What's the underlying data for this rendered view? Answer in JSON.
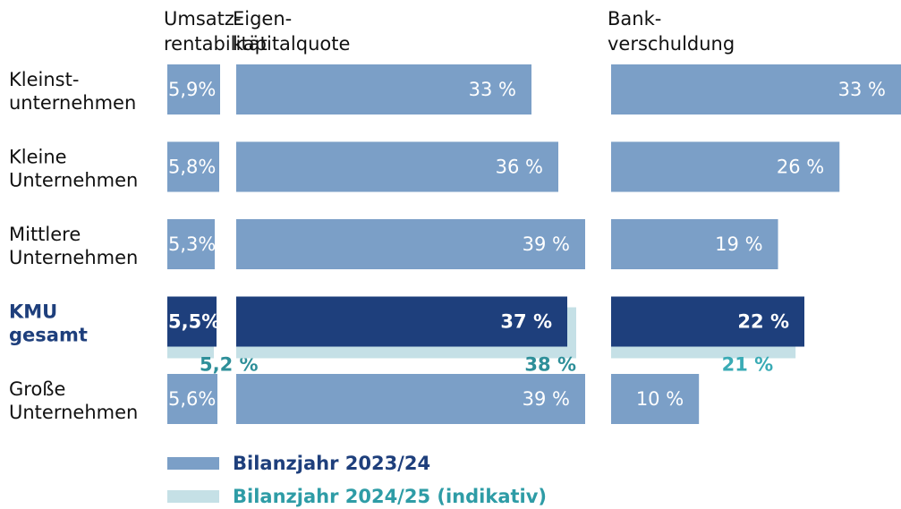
{
  "chart_data": {
    "type": "bar",
    "orientation": "horizontal",
    "categories": [
      [
        "Kleinst-",
        "unternehmen"
      ],
      [
        "Kleine",
        "Unternehmen"
      ],
      [
        "Mittlere",
        "Unternehmen"
      ],
      [
        "KMU",
        "gesamt"
      ],
      [
        "Große",
        "Unternehmen"
      ]
    ],
    "category_colors": [
      "#111111",
      "#111111",
      "#111111",
      "#1e3f7c",
      "#111111"
    ],
    "category_bold": [
      false,
      false,
      false,
      true,
      false
    ],
    "legend": [
      {
        "name": "Bilanzjahr 2023/24",
        "color": "#7b9fc7",
        "text_color": "#1e3f7c"
      },
      {
        "name": "Bilanzjahr 2024/25 (indikativ)",
        "color": "#c5e0e6",
        "text_color": "#2e9ca6"
      }
    ],
    "panels": [
      {
        "title": [
          "Umsatz-",
          "rentabilität"
        ],
        "xlim": [
          0,
          7
        ],
        "series": [
          {
            "values": [
              5.9,
              5.8,
              5.3,
              5.5,
              5.6
            ],
            "value_labels": [
              "5,9%",
              "5,8%",
              "5,3%",
              "5,5%",
              "5,6%"
            ],
            "colors": [
              "#7b9fc7",
              "#7b9fc7",
              "#7b9fc7",
              "#1e3f7c",
              "#7b9fc7"
            ]
          },
          {
            "values": [
              null,
              null,
              null,
              5.2,
              null
            ],
            "value_labels": [
              null,
              null,
              null,
              "5,2 %",
              null
            ],
            "color": "#c5e0e6",
            "label_color": "#2e8f99"
          }
        ]
      },
      {
        "title": [
          "Eigen-",
          "kapitalquote"
        ],
        "xlim": [
          0,
          40
        ],
        "series": [
          {
            "values": [
              33,
              36,
              39,
              37,
              39
            ],
            "value_labels": [
              "33 %",
              "36 %",
              "39 %",
              "37 %",
              "39 %"
            ],
            "colors": [
              "#7b9fc7",
              "#7b9fc7",
              "#7b9fc7",
              "#1e3f7c",
              "#7b9fc7"
            ]
          },
          {
            "values": [
              null,
              null,
              null,
              38,
              null
            ],
            "value_labels": [
              null,
              null,
              null,
              "38 %",
              null
            ],
            "color": "#c5e0e6",
            "label_color": "#2e8f99"
          }
        ]
      },
      {
        "title": [
          "Bank-",
          "verschuldung"
        ],
        "xlim": [
          0,
          33
        ],
        "series": [
          {
            "values": [
              33,
              26,
              19,
              22,
              10
            ],
            "value_labels": [
              "33 %",
              "26 %",
              "19 %",
              "22 %",
              "10 %"
            ],
            "colors": [
              "#7b9fc7",
              "#7b9fc7",
              "#7b9fc7",
              "#1e3f7c",
              "#7b9fc7"
            ]
          },
          {
            "values": [
              null,
              null,
              null,
              21,
              null
            ],
            "value_labels": [
              null,
              null,
              null,
              "21 %",
              null
            ],
            "color": "#c5e0e6",
            "label_color": "#3aabb5"
          }
        ]
      }
    ]
  }
}
